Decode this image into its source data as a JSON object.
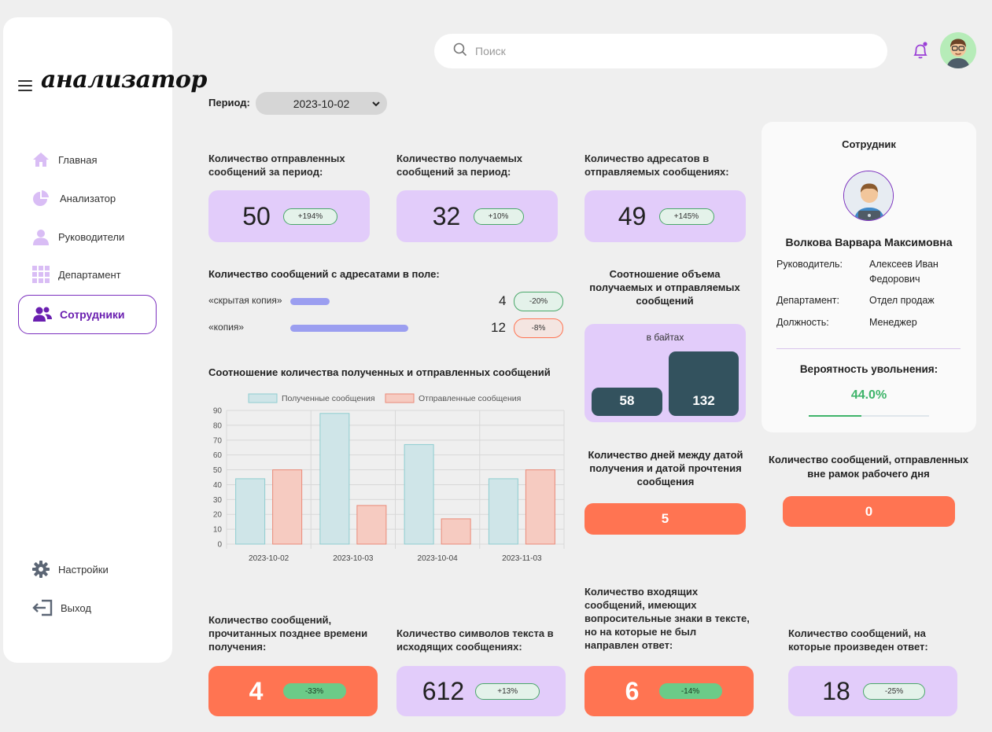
{
  "app": {
    "logo": "анализатор"
  },
  "sidebar": {
    "items": [
      {
        "label": "Главная",
        "icon": "home-icon"
      },
      {
        "label": "Анализатор",
        "icon": "pie-chart-icon"
      },
      {
        "label": "Руководители",
        "icon": "user-icon"
      },
      {
        "label": "Департамент",
        "icon": "grid-icon"
      },
      {
        "label": "Сотрудники",
        "icon": "users-icon",
        "active": true
      }
    ],
    "settings_label": "Настройки",
    "logout_label": "Выход"
  },
  "search": {
    "placeholder": "Поиск"
  },
  "period": {
    "label": "Период:",
    "value": "2023-10-02"
  },
  "metrics": {
    "sent": {
      "label": "Количество отправленных сообщений за период:",
      "value": "50",
      "delta": "+194%"
    },
    "received": {
      "label": "Количество получаемых сообщений за период:",
      "value": "32",
      "delta": "+10%"
    },
    "recipients": {
      "label": "Количество адресатов в отправляемых сообщениях:",
      "value": "49",
      "delta": "+145%"
    },
    "read_late": {
      "label": "Количество сообщений, прочитанных позднее времени получения:",
      "value": "4",
      "delta": "-33%"
    },
    "chars": {
      "label": "Количество символов текста в исходящих сообщениях:",
      "value": "612",
      "delta": "+13%"
    },
    "unanswered": {
      "label": "Количество входящих сообщений, имеющих вопросительные знаки в тексте, но на которые не был направлен ответ:",
      "value": "6",
      "delta": "-14%"
    },
    "answered": {
      "label": "Количество сообщений, на которые произведен ответ:",
      "value": "18",
      "delta": "-25%"
    }
  },
  "copy_fields": {
    "title": "Количество сообщений с адресатами в поле:",
    "rows": [
      {
        "label": "«скрытая копия»",
        "value": "4",
        "fraction": 0.33,
        "delta": "-20%"
      },
      {
        "label": "«копия»",
        "value": "12",
        "fraction": 1.0,
        "delta": "-8%"
      }
    ]
  },
  "bytes": {
    "title": "Соотношение объема получаемых и отправляемых сообщений",
    "subtitle": "в байтах",
    "received": 58,
    "sent": 132
  },
  "days": {
    "title": "Количество дней между датой получения и датой прочтения сообщения",
    "value": "5"
  },
  "outside_hours": {
    "title": "Количество сообщений, отправленных вне рамок рабочего дня",
    "value": "0"
  },
  "chart_title": "Соотношение количества полученных и отправленных сообщений",
  "chart_data": {
    "type": "bar",
    "categories": [
      "2023-10-02",
      "2023-10-03",
      "2023-10-04",
      "2023-11-03"
    ],
    "series": [
      {
        "name": "Полученные сообщения",
        "values": [
          44,
          88,
          67,
          44
        ],
        "color": "#cfe5e8",
        "stroke": "#8fcdd0"
      },
      {
        "name": "Отправленные сообщения",
        "values": [
          50,
          26,
          17,
          50
        ],
        "color": "#f6cbc1",
        "stroke": "#ea8a78"
      }
    ],
    "yticks": [
      "0",
      "10",
      "20",
      "30",
      "40",
      "50",
      "60",
      "70",
      "80",
      "90"
    ],
    "ylim": [
      0,
      90
    ],
    "legend": "top",
    "grid": true
  },
  "profile": {
    "title": "Сотрудник",
    "name": "Волкова Варвара Максимовна",
    "manager_label": "Руководитель:",
    "manager": "Алексеев Иван Федорович",
    "department_label": "Департамент:",
    "department": "Отдел продаж",
    "position_label": "Должность:",
    "position": "Менеджер",
    "dismissal_label": "Вероятность увольнения:",
    "dismissal_prob": "44.0%",
    "dismissal_fraction": 0.44
  }
}
